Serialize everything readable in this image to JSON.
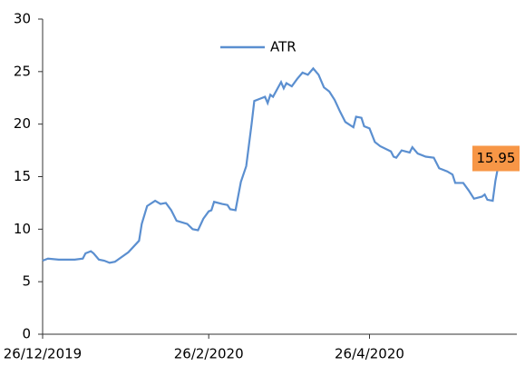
{
  "chart_data": {
    "type": "line",
    "x": [
      "26/12/2019",
      "28/12/2019",
      "1/1/2020",
      "4/1/2020",
      "7/1/2020",
      "10/1/2020",
      "11/1/2020",
      "13/1/2020",
      "14/1/2020",
      "16/1/2020",
      "18/1/2020",
      "20/1/2020",
      "22/1/2020",
      "27/1/2020",
      "31/1/2020",
      "1/2/2020",
      "3/2/2020",
      "6/2/2020",
      "8/2/2020",
      "10/2/2020",
      "12/2/2020",
      "14/2/2020",
      "18/2/2020",
      "20/2/2020",
      "22/2/2020",
      "24/2/2020",
      "26/2/2020",
      "27/2/2020",
      "28/2/2020",
      "2/3/2020",
      "4/3/2020",
      "5/3/2020",
      "7/3/2020",
      "9/3/2020",
      "11/3/2020",
      "13/3/2020",
      "14/3/2020",
      "16/3/2020",
      "18/3/2020",
      "19/3/2020",
      "20/3/2020",
      "21/3/2020",
      "24/3/2020",
      "25/3/2020",
      "26/3/2020",
      "28/3/2020",
      "30/3/2020",
      "1/4/2020",
      "3/4/2020",
      "5/4/2020",
      "7/4/2020",
      "9/4/2020",
      "11/4/2020",
      "13/4/2020",
      "15/4/2020",
      "17/4/2020",
      "20/4/2020",
      "21/4/2020",
      "23/4/2020",
      "24/4/2020",
      "26/4/2020",
      "28/4/2020",
      "30/4/2020",
      "4/5/2020",
      "5/5/2020",
      "6/5/2020",
      "8/5/2020",
      "11/5/2020",
      "12/5/2020",
      "14/5/2020",
      "17/5/2020",
      "20/5/2020",
      "22/5/2020",
      "25/5/2020",
      "27/5/2020",
      "28/5/2020",
      "31/5/2020",
      "2/6/2020",
      "4/6/2020",
      "7/6/2020",
      "8/6/2020",
      "9/6/2020",
      "11/6/2020",
      "12/6/2020",
      "13/6/2020"
    ],
    "series": [
      {
        "name": "ATR",
        "color": "#5b8fd0",
        "values": [
          7.0,
          7.2,
          7.1,
          7.1,
          7.1,
          7.2,
          7.7,
          7.9,
          7.7,
          7.1,
          7.0,
          6.8,
          6.9,
          7.8,
          8.9,
          10.5,
          12.2,
          12.7,
          12.4,
          12.5,
          11.8,
          10.8,
          10.5,
          10.0,
          9.9,
          11.0,
          11.7,
          11.8,
          12.6,
          12.4,
          12.3,
          11.9,
          11.8,
          14.5,
          16.0,
          20.0,
          22.2,
          22.4,
          22.6,
          22.0,
          22.8,
          22.6,
          24.0,
          23.4,
          23.9,
          23.6,
          24.3,
          24.9,
          24.7,
          25.3,
          24.7,
          23.5,
          23.1,
          22.3,
          21.2,
          20.2,
          19.7,
          20.7,
          20.6,
          19.8,
          19.6,
          18.3,
          17.9,
          17.4,
          16.9,
          16.8,
          17.5,
          17.3,
          17.8,
          17.2,
          16.9,
          16.8,
          15.8,
          15.5,
          15.2,
          14.4,
          14.4,
          13.7,
          12.9,
          13.1,
          13.3,
          12.8,
          12.7,
          14.6,
          15.95
        ]
      }
    ],
    "xlim": [
      "26/12/2019",
      "20/6/2020"
    ],
    "xticks": [
      "26/12/2019",
      "26/2/2020",
      "26/4/2020"
    ],
    "ylim": [
      0,
      30
    ],
    "yticks": [
      0,
      5,
      10,
      15,
      20,
      25,
      30
    ],
    "legend": "top",
    "annotation_color": "#f79646"
  }
}
